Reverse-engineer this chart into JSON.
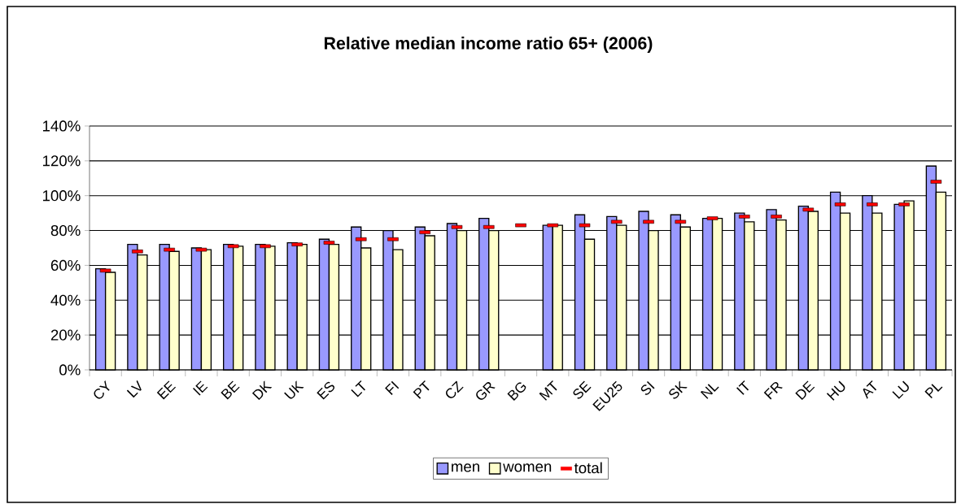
{
  "chart_data": {
    "type": "bar",
    "title": "Relative median income ratio 65+ (2006)",
    "categories": [
      "CY",
      "LV",
      "EE",
      "IE",
      "BE",
      "DK",
      "UK",
      "ES",
      "LT",
      "FI",
      "PT",
      "CZ",
      "GR",
      "BG",
      "MT",
      "SE",
      "EU25",
      "SI",
      "SK",
      "NL",
      "IT",
      "FR",
      "DE",
      "HU",
      "AT",
      "LU",
      "PL"
    ],
    "series": [
      {
        "name": "men",
        "color": "#9999ff",
        "values": [
          58,
          72,
          72,
          70,
          72,
          72,
          73,
          75,
          82,
          80,
          82,
          84,
          87,
          null,
          83,
          89,
          88,
          91,
          89,
          87,
          90,
          92,
          94,
          102,
          100,
          95,
          117
        ]
      },
      {
        "name": "women",
        "color": "#ffffcc",
        "values": [
          56,
          66,
          68,
          69,
          71,
          71,
          72,
          72,
          70,
          69,
          77,
          80,
          80,
          null,
          83,
          75,
          83,
          80,
          82,
          87,
          85,
          86,
          91,
          90,
          90,
          97,
          102
        ]
      },
      {
        "name": "total",
        "type": "scatter",
        "color": "#ff0000",
        "values": [
          57,
          68,
          69,
          69,
          71,
          71,
          72,
          73,
          75,
          75,
          79,
          82,
          82,
          83,
          83,
          83,
          85,
          85,
          85,
          87,
          88,
          88,
          92,
          95,
          95,
          95,
          108
        ]
      }
    ],
    "ylim": [
      0,
      140
    ],
    "yticks": [
      {
        "value": 0,
        "label": "0%"
      },
      {
        "value": 20,
        "label": "20%"
      },
      {
        "value": 40,
        "label": "40%"
      },
      {
        "value": 60,
        "label": "60%"
      },
      {
        "value": 80,
        "label": "80%"
      },
      {
        "value": 100,
        "label": "100%"
      },
      {
        "value": 120,
        "label": "120%"
      },
      {
        "value": 140,
        "label": "140%"
      }
    ],
    "grid": "y",
    "legend": "bottom"
  }
}
